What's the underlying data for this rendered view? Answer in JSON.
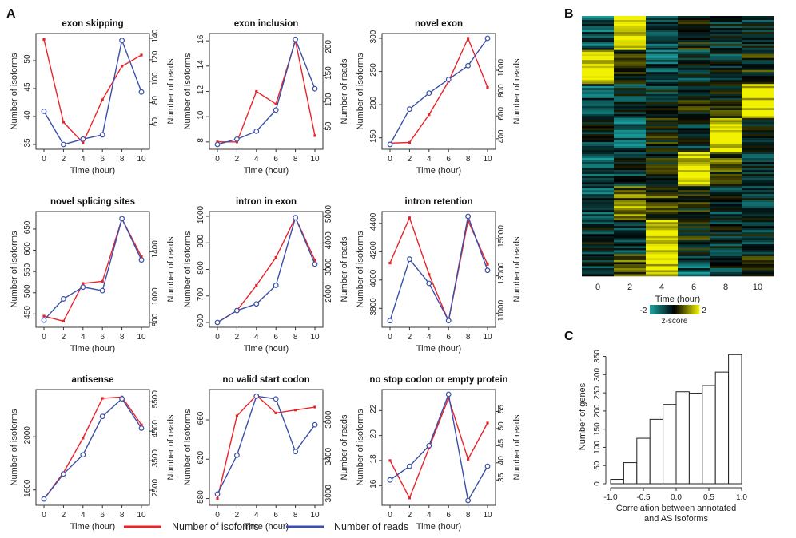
{
  "figure": {
    "panel_labels": [
      "A",
      "B",
      "C"
    ],
    "legend": {
      "isoforms_label": "Number of isoforms",
      "reads_label": "Number of reads",
      "isoforms_color": "#e8232b",
      "reads_color": "#3a4fa8"
    }
  },
  "chart_data": [
    {
      "id": "exon-skipping",
      "type": "line",
      "title": "exon skipping",
      "xlabel": "Time (hour)",
      "ylabel": "Number of isoforms",
      "y2label": "Number of reads",
      "x": [
        0,
        2,
        4,
        6,
        8,
        10
      ],
      "ylim": [
        35,
        54
      ],
      "yticks": [
        35,
        40,
        45,
        50
      ],
      "y2lim": [
        41,
        140
      ],
      "y2ticks": [
        60,
        80,
        100,
        120,
        140
      ],
      "series": [
        {
          "name": "Number of isoforms",
          "axis": "left",
          "values": [
            53.8,
            39.0,
            35.3,
            43.0,
            49.0,
            51.0
          ]
        },
        {
          "name": "Number of reads",
          "axis": "right",
          "values": [
            72,
            41,
            46,
            50,
            138,
            90
          ]
        }
      ]
    },
    {
      "id": "exon-inclusion",
      "type": "line",
      "title": "exon inclusion",
      "xlabel": "Time (hour)",
      "ylabel": "Number of isoforms",
      "y2label": "Number of reads",
      "x": [
        0,
        2,
        4,
        6,
        8,
        10
      ],
      "ylim": [
        7.8,
        16.2
      ],
      "yticks": [
        8,
        10,
        12,
        14,
        16
      ],
      "y2lim": [
        20,
        220
      ],
      "y2ticks": [
        50,
        100,
        150,
        200
      ],
      "series": [
        {
          "name": "Number of isoforms",
          "axis": "left",
          "values": [
            8.0,
            8.0,
            12.0,
            11.0,
            16.0,
            8.5
          ]
        },
        {
          "name": "Number of reads",
          "axis": "right",
          "values": [
            20,
            30,
            45,
            85,
            218,
            125
          ]
        }
      ]
    },
    {
      "id": "novel-exon",
      "type": "line",
      "title": "novel exon",
      "xlabel": "Time (hour)",
      "ylabel": "Number of isoforms",
      "y2label": "Number of reads",
      "x": [
        0,
        2,
        4,
        6,
        8,
        10
      ],
      "ylim": [
        140,
        300
      ],
      "yticks": [
        150,
        200,
        250,
        300
      ],
      "y2lim": [
        350,
        1280
      ],
      "y2ticks": [
        400,
        600,
        800,
        1000
      ],
      "series": [
        {
          "name": "Number of isoforms",
          "axis": "left",
          "values": [
            142,
            143,
            185,
            235,
            300,
            226
          ]
        },
        {
          "name": "Number of reads",
          "axis": "right",
          "values": [
            350,
            660,
            800,
            920,
            1040,
            1280
          ]
        }
      ]
    },
    {
      "id": "novel-splicing-sites",
      "type": "line",
      "title": "novel splicing sites",
      "xlabel": "Time (hour)",
      "ylabel": "Number of isoforms",
      "y2label": "Number of reads",
      "x": [
        0,
        2,
        4,
        6,
        8,
        10
      ],
      "ylim": [
        430,
        680
      ],
      "yticks": [
        450,
        500,
        550,
        600,
        650
      ],
      "y2lim": [
        800,
        1700
      ],
      "y2ticks": [
        800,
        1000,
        1400
      ],
      "series": [
        {
          "name": "Number of isoforms",
          "axis": "left",
          "values": [
            445,
            433,
            522,
            527,
            674,
            585
          ]
        },
        {
          "name": "Number of reads",
          "axis": "right",
          "values": [
            820,
            1000,
            1100,
            1070,
            1680,
            1330
          ]
        }
      ]
    },
    {
      "id": "intron-in-exon",
      "type": "line",
      "title": "intron in exon",
      "xlabel": "Time (hour)",
      "ylabel": "Number of isoforms",
      "y2label": "Number of reads",
      "x": [
        0,
        2,
        4,
        6,
        8,
        10
      ],
      "ylim": [
        600,
        1000
      ],
      "yticks": [
        600,
        700,
        800,
        900,
        1000
      ],
      "y2lim": [
        1000,
        5000
      ],
      "y2ticks": [
        2000,
        3000,
        4000,
        5000
      ],
      "series": [
        {
          "name": "Number of isoforms",
          "axis": "left",
          "values": [
            600,
            645,
            740,
            845,
            995,
            835
          ]
        },
        {
          "name": "Number of reads",
          "axis": "right",
          "values": [
            1000,
            1450,
            1700,
            2400,
            4950,
            3200
          ]
        }
      ]
    },
    {
      "id": "intron-retention",
      "type": "line",
      "title": "intron retention",
      "xlabel": "Time (hour)",
      "ylabel": "Number of isoforms",
      "y2label": "Number of reads",
      "x": [
        0,
        2,
        4,
        6,
        8,
        10
      ],
      "ylim": [
        3700,
        4450
      ],
      "yticks": [
        3800,
        4000,
        4200,
        4400
      ],
      "y2lim": [
        10500,
        16200
      ],
      "y2ticks": [
        11000,
        13000,
        15000
      ],
      "series": [
        {
          "name": "Number of isoforms",
          "axis": "left",
          "values": [
            4120,
            4440,
            4040,
            3710,
            4420,
            4110
          ]
        },
        {
          "name": "Number of reads",
          "axis": "right",
          "values": [
            10600,
            13900,
            12600,
            10600,
            16200,
            13300
          ]
        }
      ]
    },
    {
      "id": "antisense",
      "type": "line",
      "title": "antisense",
      "xlabel": "Time (hour)",
      "ylabel": "Number of isoforms",
      "y2label": "Number of reads",
      "x": [
        0,
        2,
        4,
        6,
        8,
        10
      ],
      "ylim": [
        1520,
        2320
      ],
      "yticks": [
        1600,
        2000
      ],
      "y2lim": [
        2150,
        5750
      ],
      "y2ticks": [
        2500,
        3500,
        4500,
        5500
      ],
      "series": [
        {
          "name": "Number of isoforms",
          "axis": "left",
          "values": [
            1530,
            1730,
            1990,
            2290,
            2300,
            2090
          ]
        },
        {
          "name": "Number of reads",
          "axis": "right",
          "values": [
            2200,
            3050,
            3700,
            5000,
            5600,
            4600
          ]
        }
      ]
    },
    {
      "id": "no-valid-start-codon",
      "type": "line",
      "title": "no valid start codon",
      "xlabel": "Time (hour)",
      "ylabel": "Number of isoforms",
      "y2label": "Number of reads",
      "x": [
        0,
        2,
        4,
        6,
        8,
        10
      ],
      "ylim": [
        578,
        686
      ],
      "yticks": [
        580,
        620,
        660
      ],
      "y2lim": [
        2950,
        4100
      ],
      "y2ticks": [
        3000,
        3400,
        3800
      ],
      "series": [
        {
          "name": "Number of isoforms",
          "axis": "left",
          "values": [
            580,
            664,
            685,
            667,
            670,
            673
          ]
        },
        {
          "name": "Number of reads",
          "axis": "right",
          "values": [
            3020,
            3440,
            4080,
            4050,
            3480,
            3770
          ]
        }
      ]
    },
    {
      "id": "no-stop-codon",
      "type": "line",
      "title": "no stop codon or empty protein",
      "xlabel": "Time (hour)",
      "ylabel": "Number of isoforms",
      "y2label": "Number of reads",
      "x": [
        0,
        2,
        4,
        6,
        8,
        10
      ],
      "ylim": [
        14.8,
        23.3
      ],
      "yticks": [
        16,
        18,
        20,
        22
      ],
      "y2lim": [
        29,
        60
      ],
      "y2ticks": [
        35,
        40,
        45,
        50,
        55
      ],
      "series": [
        {
          "name": "Number of isoforms",
          "axis": "left",
          "values": [
            18.0,
            15.0,
            19.0,
            23.0,
            18.1,
            21.0
          ]
        },
        {
          "name": "Number of reads",
          "axis": "right",
          "values": [
            35,
            39,
            45,
            60,
            29,
            39
          ]
        }
      ]
    },
    {
      "id": "heatmap",
      "type": "heatmap",
      "xlabel": "Time (hour)",
      "x": [
        0,
        2,
        4,
        6,
        8,
        10
      ],
      "colorbar": {
        "label": "z-score",
        "ticks": [
          -2,
          2
        ],
        "range": [
          -2,
          2
        ],
        "low_color": "#1aa6a6",
        "mid_color": "#000000",
        "high_color": "#f2f200"
      },
      "cluster_rows": 8,
      "cluster_profiles": [
        [
          -1,
          2,
          -1,
          0,
          -0.5,
          -0.5
        ],
        [
          2,
          0,
          -1,
          -0.5,
          -0.5,
          0
        ],
        [
          -1,
          -0.5,
          -0.5,
          0,
          0,
          2
        ],
        [
          -0.5,
          -1,
          0,
          -0.5,
          2,
          0
        ],
        [
          -1,
          -0.5,
          0,
          2,
          0.5,
          -0.5
        ],
        [
          -1,
          1,
          0.5,
          0,
          -0.5,
          -0.5
        ],
        [
          -0.5,
          -0.5,
          2,
          0,
          -0.5,
          -0.5
        ],
        [
          -0.5,
          0.5,
          2,
          -1,
          -0.5,
          0
        ]
      ]
    },
    {
      "id": "histogram",
      "type": "bar",
      "xlabel": "Correlation between annotated\nand AS isoforms",
      "ylabel": "Number of genes",
      "bin_edges": [
        -1.0,
        -0.8,
        -0.6,
        -0.4,
        -0.2,
        0.0,
        0.2,
        0.4,
        0.6,
        0.8,
        1.0
      ],
      "values": [
        12,
        58,
        125,
        177,
        218,
        253,
        249,
        270,
        307,
        355
      ],
      "xlim": [
        -1.0,
        1.0
      ],
      "xticks": [
        -1.0,
        -0.5,
        0.0,
        0.5,
        1.0
      ],
      "ylim": [
        0,
        360
      ],
      "yticks": [
        0,
        50,
        100,
        150,
        200,
        250,
        300,
        350
      ]
    }
  ]
}
